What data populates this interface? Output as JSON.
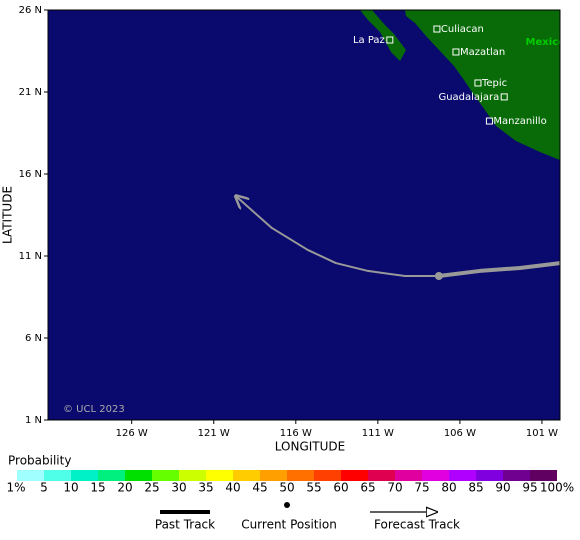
{
  "map": {
    "xlabel": "LONGITUDE",
    "ylabel": "LATITUDE",
    "credit": "© UCL 2023",
    "xlim": [
      -131.1,
      -99.9
    ],
    "ylim": [
      1,
      26
    ],
    "xticks": [
      {
        "value": -126,
        "label": "126 W"
      },
      {
        "value": -121,
        "label": "121 W"
      },
      {
        "value": -116,
        "label": "116 W"
      },
      {
        "value": -111,
        "label": "111 W"
      },
      {
        "value": -106,
        "label": "106 W"
      },
      {
        "value": -101,
        "label": "101 W"
      }
    ],
    "yticks": [
      {
        "value": 1,
        "label": "1 N"
      },
      {
        "value": 6,
        "label": "6 N"
      },
      {
        "value": 11,
        "label": "11 N"
      },
      {
        "value": 16,
        "label": "16 N"
      },
      {
        "value": 21,
        "label": "21 N"
      },
      {
        "value": 26,
        "label": "26 N"
      }
    ],
    "places": [
      {
        "name": "Culiacan",
        "lon": -107.4,
        "lat": 24.84
      },
      {
        "name": "Mazatlan",
        "lon": -106.24,
        "lat": 23.44
      },
      {
        "name": "Tepic",
        "lon": -104.9,
        "lat": 21.55
      },
      {
        "name": "Guadalajara",
        "lon": -103.3,
        "lat": 20.7
      },
      {
        "name": "Manzanillo",
        "lon": -104.2,
        "lat": 19.23
      },
      {
        "name": "La Paz",
        "lon": -110.27,
        "lat": 24.17
      }
    ],
    "region": {
      "name": "Mexico",
      "lon": -102.0,
      "lat": 24.05
    },
    "track": {
      "past": {
        "lon": [
          -99.9,
          -102.34,
          -104.78,
          -107.28
        ],
        "lat": [
          10.57,
          10.27,
          10.09,
          9.78
        ]
      },
      "current": {
        "lon": -107.28,
        "lat": 9.78
      },
      "forecast": {
        "lon": [
          -107.28,
          -109.35,
          -111.61,
          -113.56,
          -115.27,
          -117.46,
          -119.66
        ],
        "lat": [
          9.78,
          9.78,
          10.09,
          10.57,
          11.37,
          12.71,
          14.66
        ]
      }
    }
  },
  "probability_scale": {
    "title": "Probability",
    "colors": [
      "#a0ffff",
      "#50ffe8",
      "#00f0c8",
      "#00f080",
      "#00e000",
      "#66ff00",
      "#ccff00",
      "#ffff00",
      "#ffcc00",
      "#ffa000",
      "#ff7000",
      "#ff4000",
      "#ff0000",
      "#e00050",
      "#e000a0",
      "#e000e0",
      "#b000ff",
      "#8000e0",
      "#700090",
      "#600060"
    ],
    "labels": [
      "1%",
      "5",
      "10",
      "15",
      "20",
      "25",
      "30",
      "35",
      "40",
      "45",
      "50",
      "55",
      "60",
      "65",
      "70",
      "75",
      "80",
      "85",
      "90",
      "95",
      "100%"
    ]
  },
  "legend": [
    "Past Track",
    "Current Position",
    "Forecast Track"
  ]
}
